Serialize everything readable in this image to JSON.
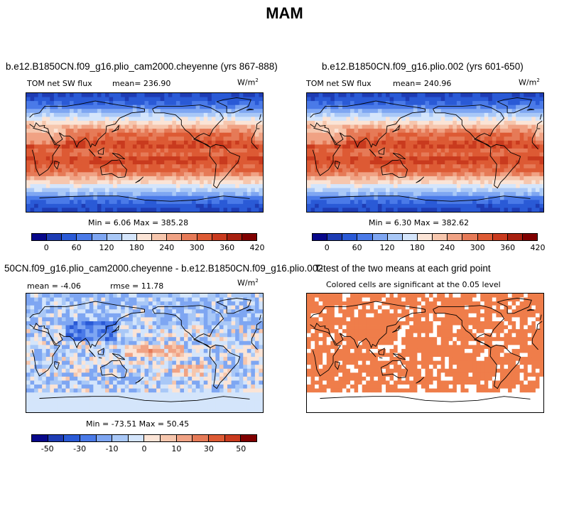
{
  "title": "MAM",
  "panels": [
    {
      "id": "p1",
      "title": "b.e12.B1850CN.f09_g16.plio_cam2000.cheyenne (yrs 867-888)",
      "left_label": "TOM net SW flux",
      "stat_label": "mean= 236.90",
      "units": "W/m",
      "units_exp": "2",
      "minmax": "Min =   6.06 Max = 385.28",
      "field": "absolute"
    },
    {
      "id": "p2",
      "title": "b.e12.B1850CN.f09_g16.plio.002 (yrs 601-650)",
      "left_label": "TOM net SW flux",
      "stat_label": "mean= 240.96",
      "units": "W/m",
      "units_exp": "2",
      "minmax": "Min =   6.30 Max = 382.62",
      "field": "absolute"
    },
    {
      "id": "p3",
      "title": "50CN.f09_g16.plio_cam2000.cheyenne - b.e12.B1850CN.f09_g16.plio.002",
      "left_label": "mean =  -4.06",
      "stat_label": "rmse =  11.78",
      "units": "W/m",
      "units_exp": "2",
      "minmax": "Min = -73.51 Max =  50.45",
      "field": "difference"
    },
    {
      "id": "p4",
      "title": "T-test of the two means at each grid point",
      "subtitle": "Colored cells are significant at the 0.05 level",
      "field": "significance"
    }
  ],
  "colorbars": {
    "absolute": {
      "ticks": [
        "0",
        "60",
        "120",
        "180",
        "240",
        "300",
        "360",
        "420"
      ],
      "colors": [
        "#08088a",
        "#1e3cb4",
        "#2a5ad6",
        "#4a7ae8",
        "#7ea6f2",
        "#a9c8f7",
        "#d4e5fb",
        "#fbe4d6",
        "#f6c6ad",
        "#f0a284",
        "#e67a57",
        "#dd5a34",
        "#c93a1e",
        "#a82010",
        "#800000"
      ]
    },
    "difference": {
      "ticks": [
        "-50",
        "-30",
        "-10",
        "0",
        "10",
        "30",
        "50"
      ],
      "colors": [
        "#08088a",
        "#1e3cb4",
        "#2a5ad6",
        "#4a7ae8",
        "#7ea6f2",
        "#a9c8f7",
        "#d4e5fb",
        "#fbe4d6",
        "#f6c6ad",
        "#f0a284",
        "#e67a57",
        "#dd5a34",
        "#c93a1e",
        "#800000"
      ]
    }
  },
  "significance_color": "#ef7d4a"
}
